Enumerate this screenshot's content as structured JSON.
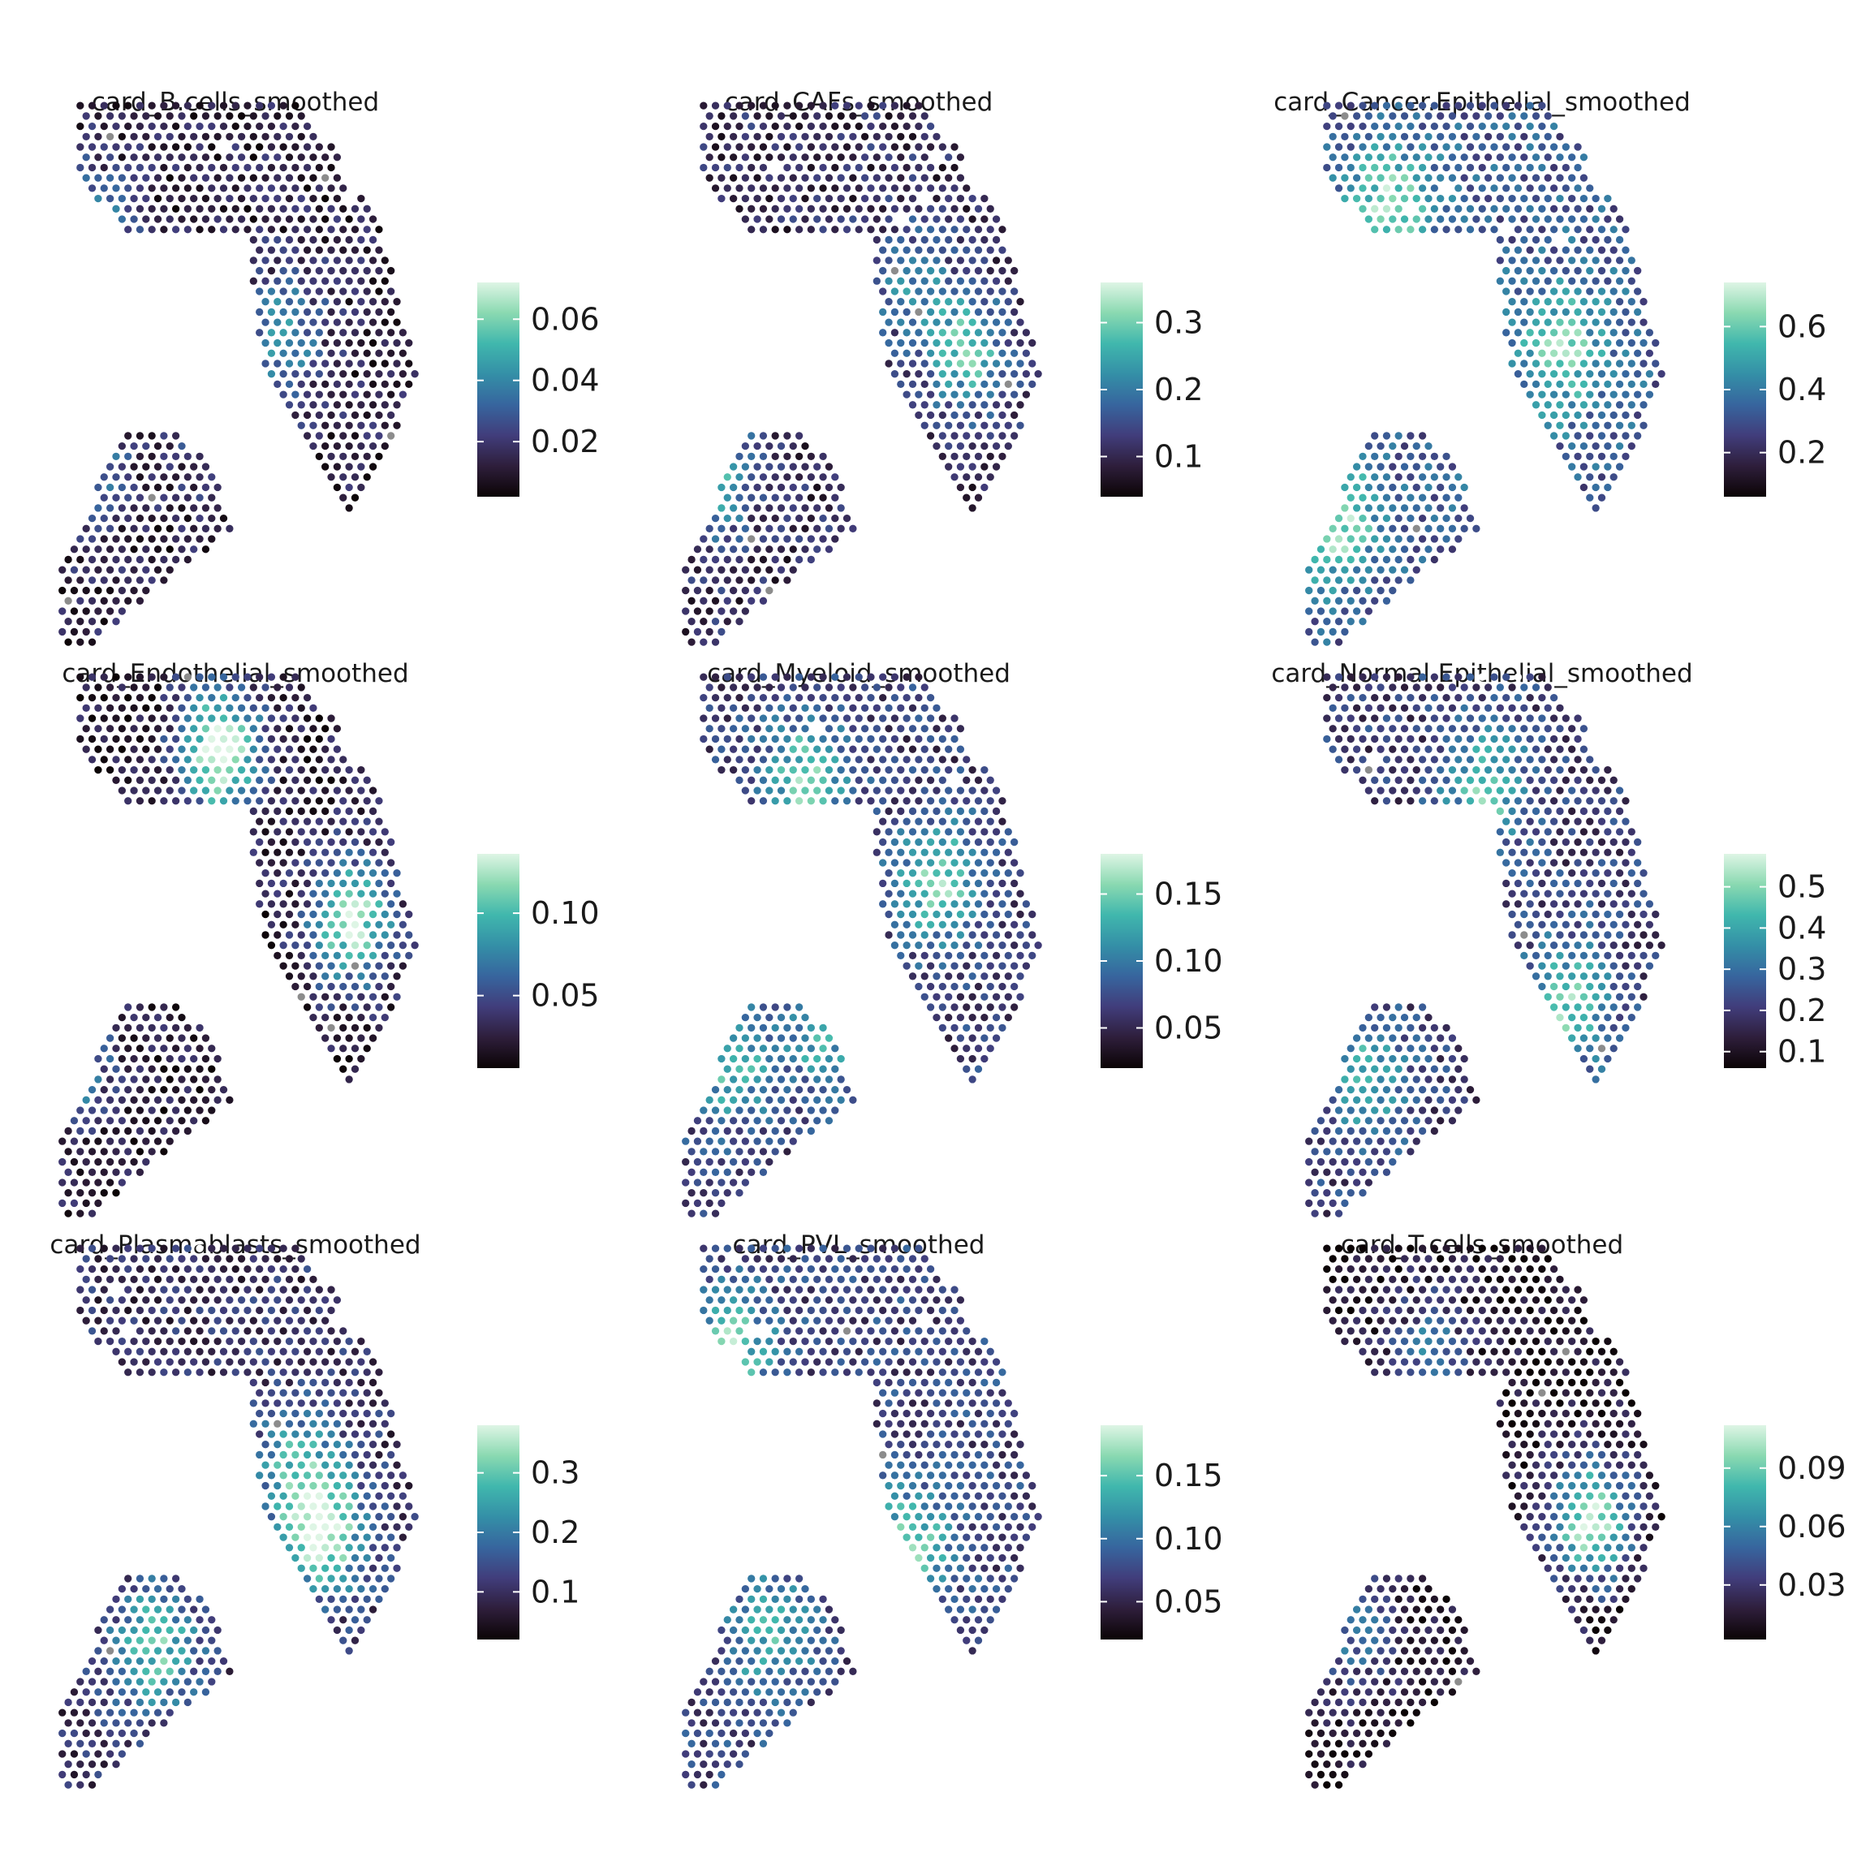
{
  "figure": {
    "colormap_name": "mako-like (near-black to mint)",
    "colormap_stops": [
      "#0b0405",
      "#2e1e3b",
      "#413d7b",
      "#37659e",
      "#348fa7",
      "#40b7ad",
      "#8ad9b1",
      "#def5e5"
    ],
    "missing_spot_color": "#8c8c8c",
    "empty_spot_color": "#ffffff"
  },
  "chart_data": [
    {
      "type": "heatmap",
      "title": "card_B.cells_smoothed",
      "scale_range": [
        0.002,
        0.072
      ],
      "legend_ticks": [
        0.02,
        0.04,
        0.06
      ],
      "tick_labels": [
        "0.02",
        "0.04",
        "0.06"
      ],
      "pattern": {
        "seed": 11,
        "bias": -0.3,
        "hotspots": [
          [
            0.1,
            0.75,
            0.55
          ],
          [
            0.62,
            0.58,
            0.4
          ],
          [
            0.08,
            0.35,
            0.45
          ],
          [
            0.45,
            0.42,
            0.3
          ]
        ]
      }
    },
    {
      "type": "heatmap",
      "title": "card_CAFs_smoothed",
      "scale_range": [
        0.04,
        0.36
      ],
      "legend_ticks": [
        0.1,
        0.2,
        0.3
      ],
      "tick_labels": [
        "0.1",
        "0.2",
        "0.3"
      ],
      "pattern": {
        "seed": 23,
        "bias": -0.2,
        "hotspots": [
          [
            0.78,
            0.55,
            0.55
          ],
          [
            0.09,
            0.33,
            0.6
          ],
          [
            0.62,
            0.67,
            0.3
          ]
        ]
      }
    },
    {
      "type": "heatmap",
      "title": "card_Cancer.Epithelial_smoothed",
      "scale_range": [
        0.06,
        0.74
      ],
      "legend_ticks": [
        0.2,
        0.4,
        0.6
      ],
      "tick_labels": [
        "0.2",
        "0.4",
        "0.6"
      ],
      "pattern": {
        "seed": 37,
        "bias": 0.18,
        "hotspots": [
          [
            0.25,
            0.8,
            0.5
          ],
          [
            0.7,
            0.55,
            0.45
          ],
          [
            0.1,
            0.25,
            0.5
          ]
        ]
      }
    },
    {
      "type": "heatmap",
      "title": "card_Endothelial_smoothed",
      "scale_range": [
        0.006,
        0.136
      ],
      "legend_ticks": [
        0.05,
        0.1
      ],
      "tick_labels": [
        "0.05",
        "0.10"
      ],
      "pattern": {
        "seed": 41,
        "bias": -0.35,
        "hotspots": [
          [
            0.45,
            0.85,
            0.9
          ],
          [
            0.8,
            0.55,
            0.8
          ],
          [
            0.05,
            0.3,
            0.5
          ]
        ]
      }
    },
    {
      "type": "heatmap",
      "title": "card_Myeloid_smoothed",
      "scale_range": [
        0.02,
        0.18
      ],
      "legend_ticks": [
        0.05,
        0.1,
        0.15
      ],
      "tick_labels": [
        "0.05",
        "0.10",
        "0.15"
      ],
      "pattern": {
        "seed": 53,
        "bias": -0.05,
        "hotspots": [
          [
            0.35,
            0.8,
            0.55
          ],
          [
            0.7,
            0.62,
            0.55
          ],
          [
            0.15,
            0.3,
            0.45
          ],
          [
            0.4,
            0.35,
            0.4
          ]
        ]
      }
    },
    {
      "type": "heatmap",
      "title": "card_Normal.Epithelial_smoothed",
      "scale_range": [
        0.06,
        0.58
      ],
      "legend_ticks": [
        0.1,
        0.2,
        0.3,
        0.4,
        0.5
      ],
      "tick_labels": [
        "0.1",
        "0.2",
        "0.3",
        "0.4",
        "0.5"
      ],
      "pattern": {
        "seed": 67,
        "bias": -0.05,
        "hotspots": [
          [
            0.5,
            0.78,
            0.5
          ],
          [
            0.72,
            0.4,
            0.55
          ],
          [
            0.18,
            0.28,
            0.45
          ]
        ]
      }
    },
    {
      "type": "heatmap",
      "title": "card_Plasmablasts_smoothed",
      "scale_range": [
        0.02,
        0.38
      ],
      "legend_ticks": [
        0.1,
        0.2,
        0.3
      ],
      "tick_labels": [
        "0.1",
        "0.2",
        "0.3"
      ],
      "pattern": {
        "seed": 79,
        "bias": -0.15,
        "hotspots": [
          [
            0.72,
            0.48,
            0.75
          ],
          [
            0.28,
            0.28,
            0.55
          ],
          [
            0.65,
            0.6,
            0.4
          ]
        ]
      }
    },
    {
      "type": "heatmap",
      "title": "card_PVL_smoothed",
      "scale_range": [
        0.02,
        0.19
      ],
      "legend_ticks": [
        0.05,
        0.1,
        0.15
      ],
      "tick_labels": [
        "0.05",
        "0.10",
        "0.15"
      ],
      "pattern": {
        "seed": 83,
        "bias": 0.0,
        "hotspots": [
          [
            0.15,
            0.8,
            0.55
          ],
          [
            0.62,
            0.45,
            0.55
          ],
          [
            0.25,
            0.3,
            0.4
          ]
        ]
      }
    },
    {
      "type": "heatmap",
      "title": "card_T.cells_smoothed",
      "scale_range": [
        0.002,
        0.112
      ],
      "legend_ticks": [
        0.03,
        0.06,
        0.09
      ],
      "tick_labels": [
        "0.03",
        "0.06",
        "0.09"
      ],
      "pattern": {
        "seed": 97,
        "bias": -0.45,
        "hotspots": [
          [
            0.78,
            0.5,
            0.85
          ],
          [
            0.35,
            0.8,
            0.4
          ],
          [
            0.15,
            0.3,
            0.4
          ]
        ]
      }
    }
  ]
}
